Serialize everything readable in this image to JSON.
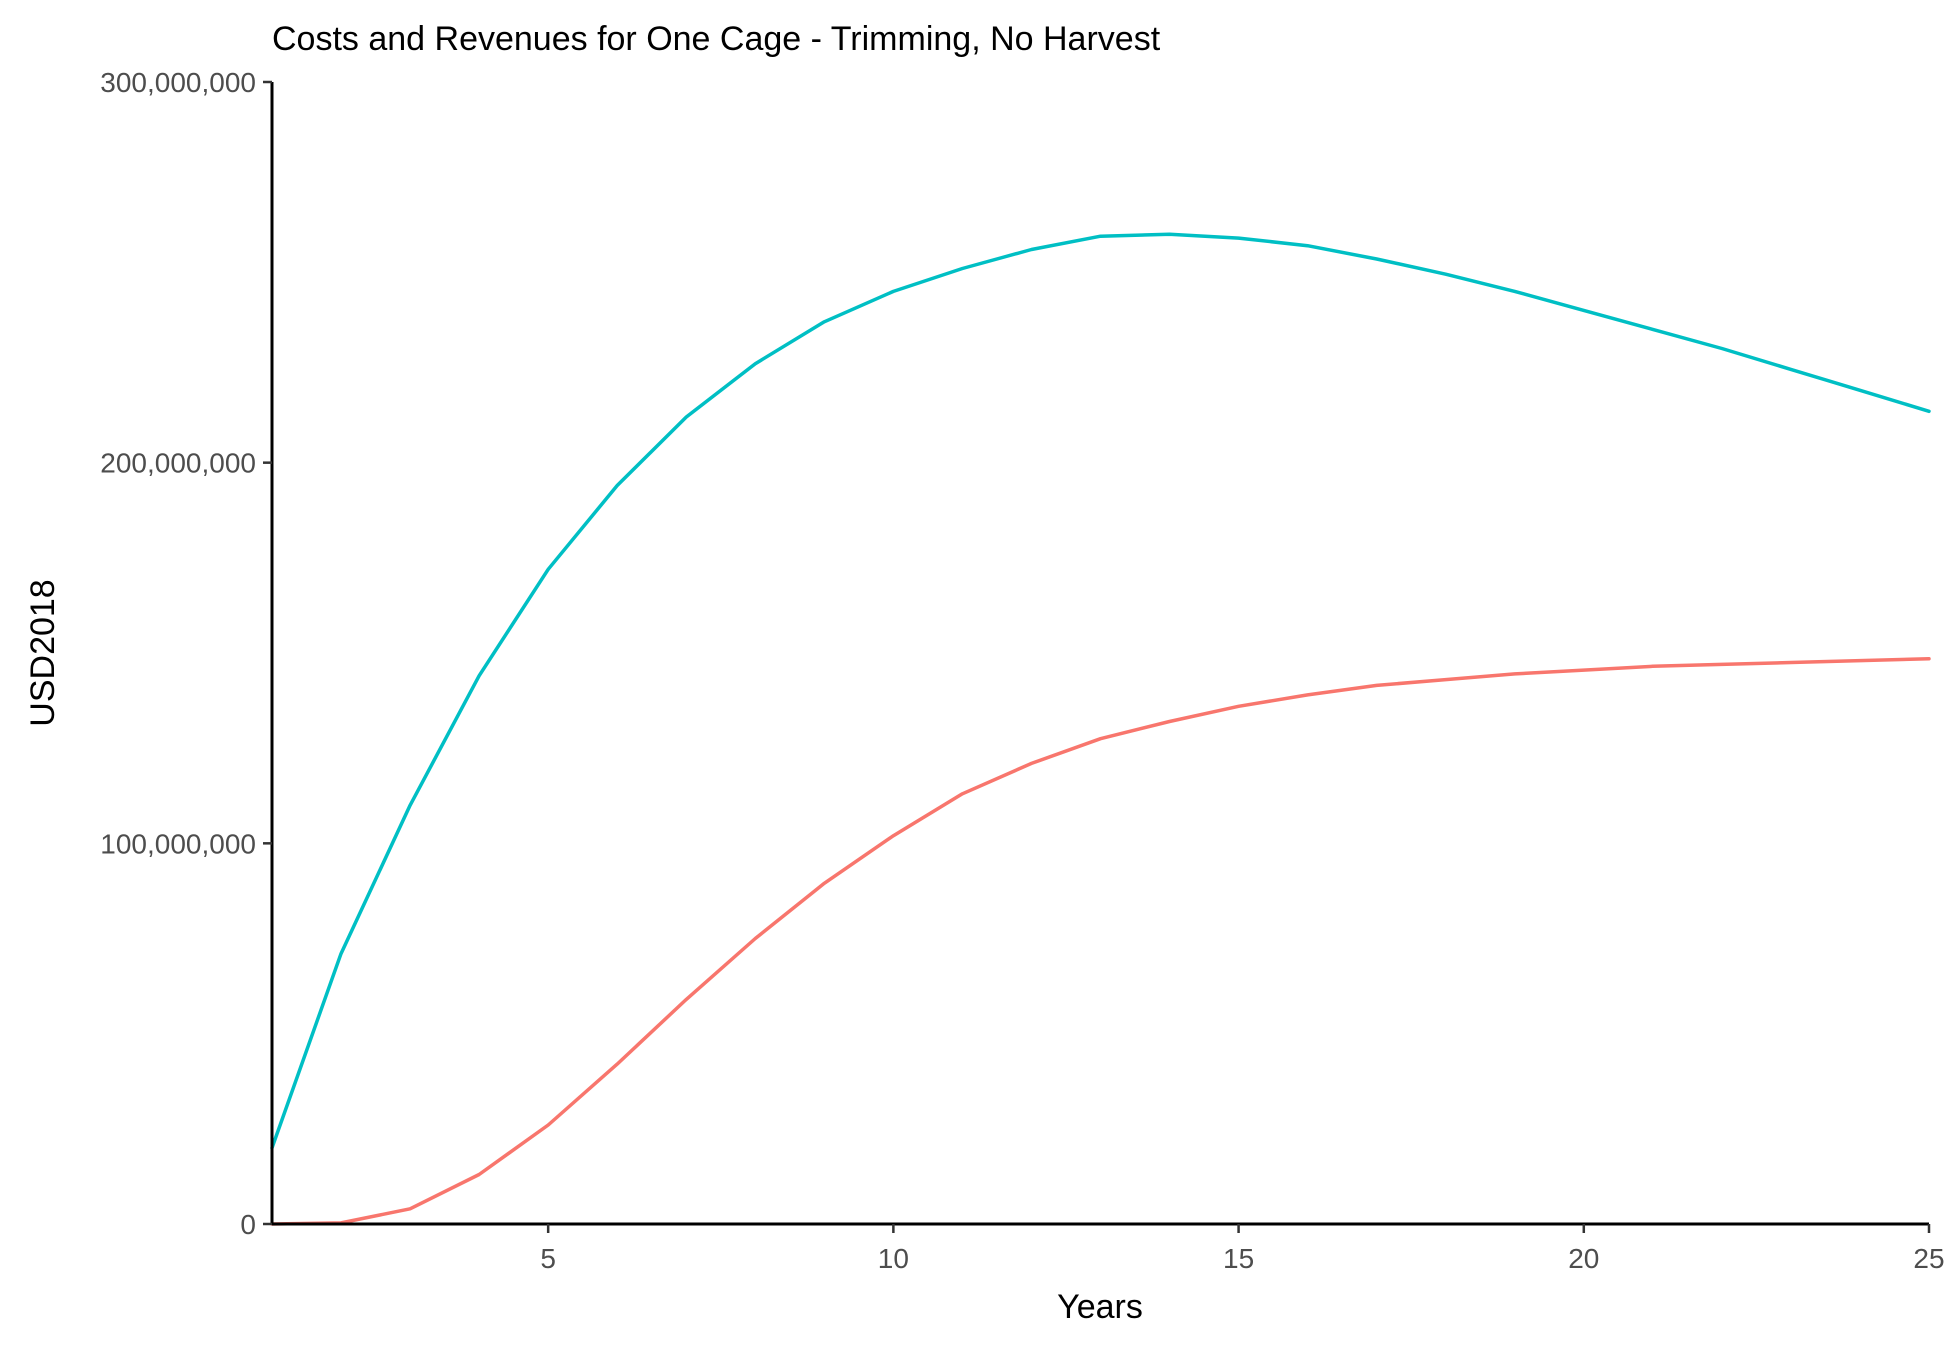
{
  "chart_data": {
    "type": "line",
    "title": "Costs and Revenues for One Cage - Trimming, No Harvest",
    "xlabel": "Years",
    "ylabel": "USD2018",
    "xlim": [
      1,
      25
    ],
    "ylim": [
      0,
      300000000
    ],
    "x_ticks": [
      5,
      10,
      15,
      20,
      25
    ],
    "x_tick_labels": [
      "5",
      "10",
      "15",
      "20",
      "25"
    ],
    "y_ticks": [
      0,
      100000000,
      200000000,
      300000000
    ],
    "y_tick_labels": [
      "0",
      "100,000,000",
      "200,000,000",
      "300,000,000"
    ],
    "grid": false,
    "legend": "none",
    "x": [
      1,
      2,
      3,
      4,
      5,
      6,
      7,
      8,
      9,
      10,
      11,
      12,
      13,
      14,
      15,
      16,
      17,
      18,
      19,
      20,
      21,
      22,
      23,
      24,
      25
    ],
    "series": [
      {
        "color": "#00BFC4",
        "values": [
          20000000,
          71000000,
          110000000,
          144000000,
          172000000,
          194000000,
          212000000,
          226000000,
          237000000,
          245000000,
          251000000,
          256000000,
          259500000,
          260000000,
          259000000,
          257000000,
          253500000,
          249500000,
          245000000,
          240000000,
          235000000,
          230000000,
          224500000,
          219000000,
          213500000
        ]
      },
      {
        "color": "#F8766D",
        "values": [
          0,
          300000,
          4000000,
          13000000,
          26000000,
          42000000,
          59000000,
          75000000,
          89500000,
          102000000,
          113000000,
          121000000,
          127500000,
          132000000,
          136000000,
          139000000,
          141500000,
          143000000,
          144500000,
          145500000,
          146500000,
          147000000,
          147500000,
          148000000,
          148500000
        ]
      }
    ]
  }
}
